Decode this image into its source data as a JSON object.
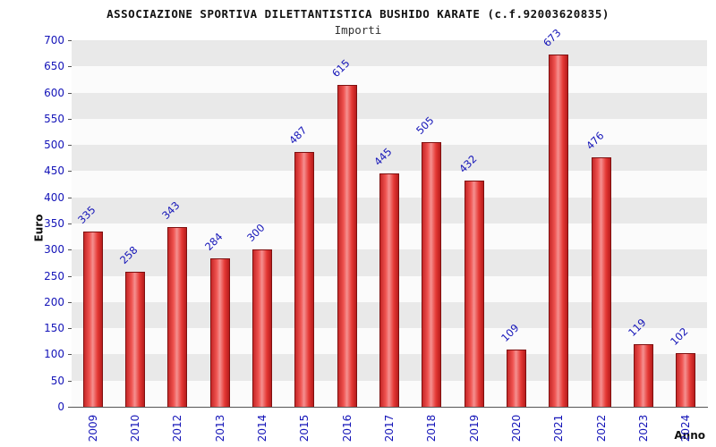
{
  "header": {
    "title": "ASSOCIAZIONE SPORTIVA DILETTANTISTICA BUSHIDO KARATE (c.f.92003620835)",
    "subtitle": "Importi"
  },
  "chart_data": {
    "type": "bar",
    "title": "ASSOCIAZIONE SPORTIVA DILETTANTISTICA BUSHIDO KARATE (c.f.92003620835)",
    "subtitle": "Importi",
    "xlabel": "Anno",
    "ylabel": "Euro",
    "categories": [
      "2009",
      "2010",
      "2012",
      "2013",
      "2014",
      "2015",
      "2016",
      "2017",
      "2018",
      "2019",
      "2020",
      "2021",
      "2022",
      "2023",
      "2024"
    ],
    "values": [
      335,
      258,
      343,
      284,
      300,
      487,
      615,
      445,
      505,
      432,
      109,
      673,
      476,
      119,
      102
    ],
    "ylim": [
      0,
      700
    ],
    "ytick_step": 50,
    "grid": "horizontal-bands",
    "legend": "none",
    "bar_color": "#e53935",
    "bar_border_color": "#7f1010",
    "value_label_color": "#1414b8",
    "tick_label_color": "#1414b8"
  }
}
